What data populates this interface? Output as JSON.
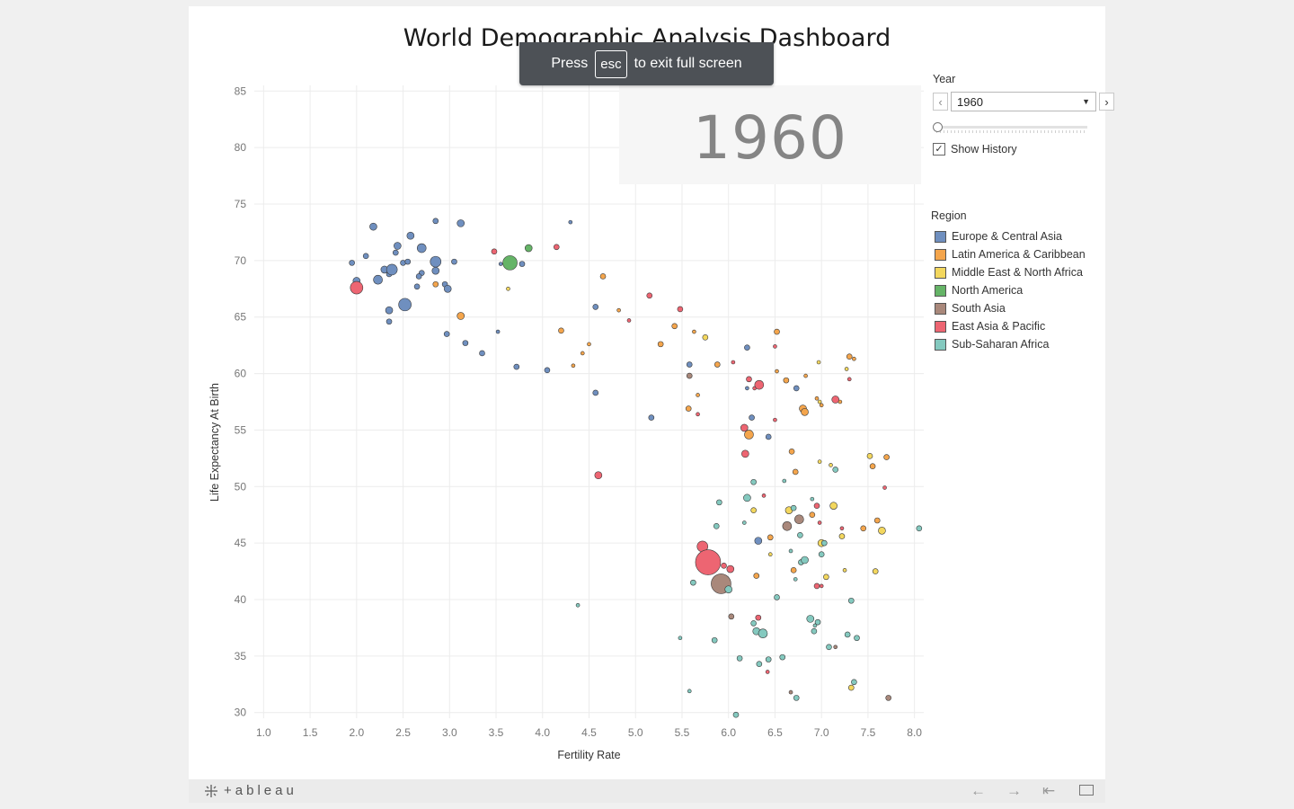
{
  "dashboard": {
    "title": "World Demographic Analysis Dashboard",
    "big_year": "1960"
  },
  "toast": {
    "press": "Press",
    "key": "esc",
    "rest": "to exit full screen"
  },
  "controls": {
    "year_label": "Year",
    "year_value": "1960",
    "slider_fraction": 0,
    "show_history_label": "Show History",
    "show_history_checked": true
  },
  "legend": {
    "title": "Region",
    "items": [
      {
        "name": "Europe & Central Asia",
        "color": "#6f8fbf"
      },
      {
        "name": "Latin America & Caribbean",
        "color": "#f4a54c"
      },
      {
        "name": "Middle East & North Africa",
        "color": "#f3d75e"
      },
      {
        "name": "North America",
        "color": "#65b467"
      },
      {
        "name": "South Asia",
        "color": "#a9887b"
      },
      {
        "name": "East Asia & Pacific",
        "color": "#ed6572"
      },
      {
        "name": "Sub-Saharan Africa",
        "color": "#84c9bf"
      }
    ]
  },
  "chart_data": {
    "type": "scatter",
    "xlabel": "Fertility Rate",
    "ylabel": "Life Expectancy At Birth",
    "xlim": [
      0.9,
      8.1
    ],
    "ylim": [
      29.5,
      85.5
    ],
    "xticks": [
      "1.0",
      "1.5",
      "2.0",
      "2.5",
      "3.0",
      "3.5",
      "4.0",
      "4.5",
      "5.0",
      "5.5",
      "6.0",
      "6.5",
      "7.0",
      "7.5",
      "8.0"
    ],
    "yticks": [
      "30",
      "35",
      "40",
      "45",
      "50",
      "55",
      "60",
      "65",
      "70",
      "75",
      "80",
      "85"
    ],
    "grid": true,
    "size_legend_shown": false,
    "series": [
      {
        "name": "Europe & Central Asia",
        "points": [
          [
            1.95,
            69.8,
            3
          ],
          [
            2.0,
            68.2,
            4
          ],
          [
            2.1,
            70.4,
            3
          ],
          [
            2.18,
            73.0,
            4
          ],
          [
            2.23,
            68.3,
            5
          ],
          [
            2.3,
            69.2,
            4
          ],
          [
            2.35,
            68.8,
            3
          ],
          [
            2.38,
            69.2,
            6
          ],
          [
            2.35,
            65.6,
            4
          ],
          [
            2.35,
            64.6,
            3
          ],
          [
            2.42,
            70.7,
            3
          ],
          [
            2.44,
            71.3,
            4
          ],
          [
            2.5,
            69.8,
            3
          ],
          [
            2.52,
            66.1,
            7
          ],
          [
            2.55,
            69.9,
            3
          ],
          [
            2.58,
            72.2,
            4
          ],
          [
            2.65,
            67.7,
            3
          ],
          [
            2.7,
            71.1,
            5
          ],
          [
            2.7,
            68.9,
            3
          ],
          [
            2.67,
            68.6,
            3
          ],
          [
            2.85,
            73.5,
            3
          ],
          [
            2.85,
            69.9,
            6
          ],
          [
            2.85,
            69.1,
            4
          ],
          [
            2.95,
            67.9,
            3
          ],
          [
            2.98,
            67.5,
            4
          ],
          [
            3.05,
            69.9,
            3
          ],
          [
            2.97,
            63.5,
            3
          ],
          [
            3.12,
            73.3,
            4
          ],
          [
            3.17,
            62.7,
            3
          ],
          [
            3.35,
            61.8,
            3
          ],
          [
            3.52,
            63.7,
            2
          ],
          [
            3.72,
            60.6,
            3
          ],
          [
            3.78,
            69.7,
            3
          ],
          [
            3.55,
            69.7,
            2
          ],
          [
            4.05,
            60.3,
            3
          ],
          [
            4.3,
            73.4,
            2
          ],
          [
            4.57,
            65.9,
            3
          ],
          [
            4.57,
            58.3,
            3
          ],
          [
            5.17,
            56.1,
            3
          ],
          [
            5.58,
            60.8,
            3
          ],
          [
            6.2,
            62.3,
            3
          ],
          [
            6.2,
            58.7,
            2
          ],
          [
            6.25,
            56.1,
            3
          ],
          [
            6.32,
            45.2,
            4
          ],
          [
            6.43,
            54.4,
            3
          ],
          [
            6.73,
            58.7,
            3
          ]
        ]
      },
      {
        "name": "Latin America & Caribbean",
        "points": [
          [
            2.85,
            67.9,
            3
          ],
          [
            3.12,
            65.1,
            4
          ],
          [
            4.2,
            63.8,
            3
          ],
          [
            4.33,
            60.7,
            2
          ],
          [
            4.43,
            61.8,
            2
          ],
          [
            4.5,
            62.6,
            2
          ],
          [
            4.65,
            68.6,
            3
          ],
          [
            4.82,
            65.6,
            2
          ],
          [
            5.27,
            62.6,
            3
          ],
          [
            5.42,
            64.2,
            3
          ],
          [
            5.57,
            56.9,
            3
          ],
          [
            5.63,
            63.7,
            2
          ],
          [
            5.67,
            58.1,
            2
          ],
          [
            5.88,
            60.8,
            3
          ],
          [
            6.22,
            54.6,
            5
          ],
          [
            6.3,
            42.1,
            3
          ],
          [
            6.52,
            63.7,
            3
          ],
          [
            6.52,
            60.2,
            2
          ],
          [
            6.62,
            59.4,
            3
          ],
          [
            6.68,
            53.1,
            3
          ],
          [
            6.72,
            51.3,
            3
          ],
          [
            6.8,
            56.9,
            4
          ],
          [
            6.82,
            56.6,
            4
          ],
          [
            6.83,
            59.8,
            2
          ],
          [
            6.9,
            47.5,
            3
          ],
          [
            6.95,
            57.8,
            2
          ],
          [
            7.0,
            57.2,
            2
          ],
          [
            7.2,
            57.5,
            2
          ],
          [
            7.3,
            61.5,
            3
          ],
          [
            7.35,
            61.3,
            2
          ],
          [
            7.45,
            46.3,
            3
          ],
          [
            7.55,
            51.8,
            3
          ],
          [
            7.6,
            47.0,
            3
          ],
          [
            6.7,
            42.6,
            3
          ],
          [
            6.45,
            45.5,
            3
          ],
          [
            7.7,
            52.6,
            3
          ]
        ]
      },
      {
        "name": "Middle East & North Africa",
        "points": [
          [
            3.63,
            67.5,
            2
          ],
          [
            5.75,
            63.2,
            3
          ],
          [
            6.27,
            47.9,
            3
          ],
          [
            6.45,
            44.0,
            2
          ],
          [
            6.65,
            47.9,
            4
          ],
          [
            6.97,
            61.0,
            2
          ],
          [
            6.98,
            52.2,
            2
          ],
          [
            7.0,
            45.0,
            4
          ],
          [
            7.05,
            42.0,
            3
          ],
          [
            7.1,
            51.9,
            2
          ],
          [
            7.13,
            48.3,
            4
          ],
          [
            7.27,
            60.4,
            2
          ],
          [
            7.22,
            45.6,
            3
          ],
          [
            7.25,
            42.6,
            2
          ],
          [
            7.32,
            32.2,
            3
          ],
          [
            7.52,
            52.7,
            3
          ],
          [
            7.58,
            42.5,
            3
          ],
          [
            7.65,
            46.1,
            4
          ],
          [
            6.98,
            57.5,
            2
          ]
        ]
      },
      {
        "name": "North America",
        "points": [
          [
            3.65,
            69.8,
            8
          ],
          [
            3.85,
            71.1,
            4
          ]
        ]
      },
      {
        "name": "South Asia",
        "points": [
          [
            5.92,
            41.4,
            11
          ],
          [
            6.03,
            38.5,
            3
          ],
          [
            6.63,
            46.5,
            5
          ],
          [
            6.76,
            47.1,
            5
          ],
          [
            5.58,
            59.8,
            3
          ],
          [
            6.67,
            31.8,
            2
          ],
          [
            7.15,
            35.8,
            2
          ],
          [
            7.72,
            31.3,
            3
          ]
        ]
      },
      {
        "name": "East Asia & Pacific",
        "points": [
          [
            2.0,
            67.6,
            7
          ],
          [
            3.48,
            70.8,
            3
          ],
          [
            4.15,
            71.2,
            3
          ],
          [
            4.6,
            51.0,
            4
          ],
          [
            4.93,
            64.7,
            2
          ],
          [
            5.15,
            66.9,
            3
          ],
          [
            5.48,
            65.7,
            3
          ],
          [
            5.67,
            56.4,
            2
          ],
          [
            5.72,
            44.7,
            6
          ],
          [
            5.78,
            43.3,
            14
          ],
          [
            5.95,
            43.0,
            3
          ],
          [
            6.02,
            42.7,
            4
          ],
          [
            6.05,
            61.0,
            2
          ],
          [
            6.17,
            55.2,
            4
          ],
          [
            6.18,
            52.9,
            4
          ],
          [
            6.22,
            59.5,
            3
          ],
          [
            6.28,
            58.7,
            2
          ],
          [
            6.32,
            38.4,
            3
          ],
          [
            6.33,
            59.0,
            5
          ],
          [
            6.38,
            49.2,
            2
          ],
          [
            6.42,
            33.6,
            2
          ],
          [
            6.5,
            55.9,
            2
          ],
          [
            6.5,
            62.4,
            2
          ],
          [
            6.95,
            48.3,
            3
          ],
          [
            6.95,
            41.2,
            3
          ],
          [
            6.98,
            46.8,
            2
          ],
          [
            7.0,
            41.2,
            2
          ],
          [
            7.15,
            57.7,
            4
          ],
          [
            7.22,
            46.3,
            2
          ],
          [
            7.3,
            59.5,
            2
          ],
          [
            7.68,
            49.9,
            2
          ]
        ]
      },
      {
        "name": "Sub-Saharan Africa",
        "points": [
          [
            4.38,
            39.5,
            2
          ],
          [
            5.48,
            36.6,
            2
          ],
          [
            5.58,
            31.9,
            2
          ],
          [
            5.62,
            41.5,
            3
          ],
          [
            5.85,
            36.4,
            3
          ],
          [
            5.87,
            46.5,
            3
          ],
          [
            5.9,
            48.6,
            3
          ],
          [
            6.0,
            40.9,
            4
          ],
          [
            6.08,
            29.8,
            3
          ],
          [
            6.12,
            34.8,
            3
          ],
          [
            6.17,
            46.8,
            2
          ],
          [
            6.2,
            49.0,
            4
          ],
          [
            6.27,
            50.4,
            3
          ],
          [
            6.27,
            37.9,
            3
          ],
          [
            6.3,
            37.2,
            4
          ],
          [
            6.33,
            34.3,
            3
          ],
          [
            6.37,
            37.0,
            5
          ],
          [
            6.43,
            34.7,
            3
          ],
          [
            6.52,
            40.2,
            3
          ],
          [
            6.58,
            34.9,
            3
          ],
          [
            6.6,
            50.5,
            2
          ],
          [
            6.67,
            44.3,
            2
          ],
          [
            6.7,
            48.1,
            3
          ],
          [
            6.72,
            41.8,
            2
          ],
          [
            6.73,
            31.3,
            3
          ],
          [
            6.77,
            45.7,
            3
          ],
          [
            6.78,
            43.3,
            3
          ],
          [
            6.82,
            43.5,
            4
          ],
          [
            6.88,
            38.3,
            4
          ],
          [
            6.92,
            37.2,
            3
          ],
          [
            6.93,
            37.7,
            2
          ],
          [
            6.9,
            48.9,
            2
          ],
          [
            6.96,
            38.0,
            3
          ],
          [
            7.0,
            44.0,
            3
          ],
          [
            7.03,
            45.0,
            3
          ],
          [
            7.08,
            35.8,
            3
          ],
          [
            7.15,
            51.5,
            3
          ],
          [
            7.28,
            36.9,
            3
          ],
          [
            7.32,
            39.9,
            3
          ],
          [
            7.35,
            32.7,
            3
          ],
          [
            7.38,
            36.6,
            3
          ],
          [
            8.05,
            46.3,
            3
          ]
        ]
      }
    ]
  }
}
